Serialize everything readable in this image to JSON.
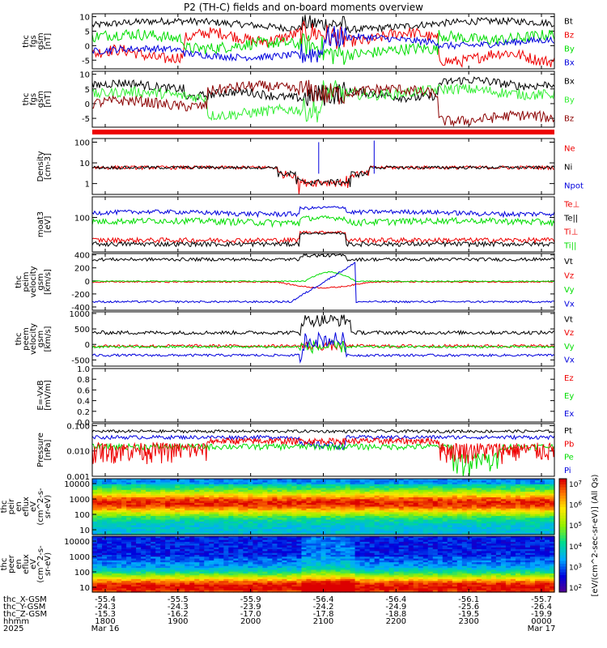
{
  "title": "P2 (TH-C) fields and on-board moments overview",
  "colors": {
    "black": "#000000",
    "red": "#ee0000",
    "green": "#00dd00",
    "blue": "#0000dd",
    "darkred": "#8b0000",
    "lightgreen": "#33ee33"
  },
  "chart_data": [
    {
      "type": "line",
      "panel": "fgs-gsm",
      "ylabel": [
        "thc",
        "fgs",
        "gsm",
        "[nT]"
      ],
      "yticks": [
        "10",
        "5",
        "0",
        "-5"
      ],
      "ylim": [
        -8,
        11
      ],
      "legend": [
        {
          "label": "Bt",
          "color": "#000000"
        },
        {
          "label": "Bz",
          "color": "#ee0000"
        },
        {
          "label": "By",
          "color": "#00dd00"
        },
        {
          "label": "Bx",
          "color": "#0000dd"
        }
      ]
    },
    {
      "type": "line",
      "panel": "fgs-gsm-rotated",
      "ylabel": [
        "thc",
        "fgs",
        "gsm",
        "[nT]"
      ],
      "yticks": [
        "10",
        "5",
        "0",
        "-5"
      ],
      "ylim": [
        -8,
        11
      ],
      "legend": [
        {
          "label": "Bx",
          "color": "#000000"
        },
        {
          "label": "By",
          "color": "#33ee33"
        },
        {
          "label": "Bz",
          "color": "#8b0000"
        }
      ]
    },
    {
      "type": "line",
      "panel": "density",
      "scale": "log",
      "ylabel": [
        "Density",
        "[cm-3]"
      ],
      "yticks": [
        "100",
        "10",
        "1"
      ],
      "ylim": [
        0.3,
        150
      ],
      "legend": [
        {
          "label": "Ne",
          "color": "#ee0000"
        },
        {
          "label": "Ni",
          "color": "#000000"
        },
        {
          "label": "Npot",
          "color": "#0000dd"
        }
      ]
    },
    {
      "type": "line",
      "panel": "temperature",
      "scale": "log",
      "ylabel": [
        "moat3",
        "[eV]"
      ],
      "yticks": [
        "100"
      ],
      "ylim": [
        5,
        600
      ],
      "legend": [
        {
          "label": "Te⊥",
          "color": "#ee0000"
        },
        {
          "label": "Te||",
          "color": "#000000"
        },
        {
          "label": "Ti⊥",
          "color": "#ee0000"
        },
        {
          "label": "Ti||",
          "color": "#00dd00"
        }
      ]
    },
    {
      "type": "line",
      "panel": "ion-velocity",
      "ylabel": [
        "thc",
        "peim",
        "velocity",
        "gsm",
        "[km/s]"
      ],
      "yticks": [
        "400",
        "200",
        "0",
        "-200",
        "-400"
      ],
      "ylim": [
        -450,
        420
      ],
      "legend": [
        {
          "label": "Vt",
          "color": "#000000"
        },
        {
          "label": "Vz",
          "color": "#ee0000"
        },
        {
          "label": "Vy",
          "color": "#00dd00"
        },
        {
          "label": "Vx",
          "color": "#0000dd"
        }
      ]
    },
    {
      "type": "line",
      "panel": "electron-velocity",
      "ylabel": [
        "thc",
        "peem",
        "velocity",
        "gsm",
        "[km/s]"
      ],
      "yticks": [
        "1000",
        "500",
        "0",
        "-500"
      ],
      "ylim": [
        -700,
        1050
      ],
      "legend": [
        {
          "label": "Vt",
          "color": "#000000"
        },
        {
          "label": "Vz",
          "color": "#ee0000"
        },
        {
          "label": "Vy",
          "color": "#00dd00"
        },
        {
          "label": "Vx",
          "color": "#0000dd"
        }
      ]
    },
    {
      "type": "line",
      "panel": "electric-field",
      "ylabel": [
        "E=-VxB",
        "[mV/m]"
      ],
      "yticks": [
        "1.0",
        "0.8",
        "0.6",
        "0.4",
        "0.2",
        "0.0"
      ],
      "ylim": [
        0,
        1
      ],
      "legend": [
        {
          "label": "Ez",
          "color": "#ee0000"
        },
        {
          "label": "Ey",
          "color": "#00dd00"
        },
        {
          "label": "Ex",
          "color": "#0000dd"
        }
      ]
    },
    {
      "type": "line",
      "panel": "pressure",
      "scale": "log",
      "ylabel": [
        "Pressure",
        "[nPa]"
      ],
      "yticks": [
        "0.100",
        "0.010",
        "0.001"
      ],
      "ylim": [
        0.001,
        0.12
      ],
      "legend": [
        {
          "label": "Pt",
          "color": "#000000"
        },
        {
          "label": "Pb",
          "color": "#ee0000"
        },
        {
          "label": "Pe",
          "color": "#00dd00"
        },
        {
          "label": "Pi",
          "color": "#0000dd"
        }
      ]
    },
    {
      "type": "heatmap",
      "panel": "ion-energy-spectrogram",
      "ylabel": [
        "thc",
        "peir",
        "en",
        "eflux",
        "eV",
        "(cm^2-s-",
        "sr-eV)"
      ],
      "yticks": [
        "10000",
        "1000",
        "100",
        "10"
      ]
    },
    {
      "type": "heatmap",
      "panel": "electron-energy-spectrogram",
      "ylabel": [
        "thc",
        "peer",
        "en",
        "eflux",
        "eV",
        "(cm^2-s-",
        "sr-eV)"
      ],
      "yticks": [
        "10000",
        "1000",
        "100",
        "10"
      ]
    }
  ],
  "colorbar": {
    "ticks": [
      "10^7",
      "10^6",
      "10^5",
      "10^4",
      "10^3",
      "10^2"
    ],
    "label": "[eV/(cm^2-sec-sr-eV)] (All Qs)"
  },
  "xaxis": {
    "rows": [
      {
        "label": "thc_X-GSM",
        "values": [
          "-55.4",
          "-55.5",
          "-55.9",
          "-56.4",
          "-56.4",
          "-56.1",
          "-55.7"
        ]
      },
      {
        "label": "thc_Y-GSM",
        "values": [
          "-24.3",
          "-24.3",
          "-23.9",
          "-24.2",
          "-24.9",
          "-25.6",
          "-26.4"
        ]
      },
      {
        "label": "thc_Z-GSM",
        "values": [
          "-15.3",
          "-16.2",
          "-17.0",
          "-17.8",
          "-18.8",
          "-19.5",
          "-19.9"
        ]
      },
      {
        "label": "hhmm",
        "values": [
          "1800",
          "1900",
          "2000",
          "2100",
          "2200",
          "2300",
          "0000"
        ]
      }
    ],
    "year": "2025",
    "dates": [
      {
        "text": "Mar 16",
        "at": 0
      },
      {
        "text": "Mar 17",
        "at": 6
      }
    ]
  }
}
